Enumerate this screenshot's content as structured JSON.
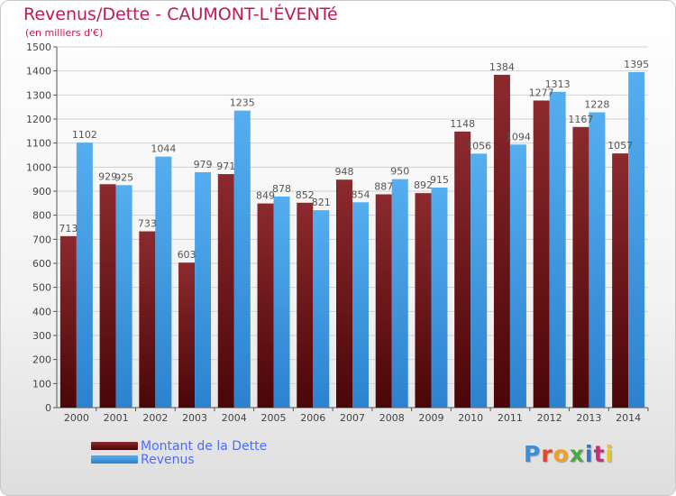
{
  "title": "Revenus/Dette - CAUMONT-L'ÉVENTé",
  "subtitle": "(en milliers d'€)",
  "logo": {
    "text": "Proxiti",
    "colors": [
      "#3b8fd8",
      "#e2462f",
      "#f0a21e",
      "#4aa844",
      "#2f76c9",
      "#c02f7d",
      "#e8c51a"
    ]
  },
  "colors": {
    "dette": "#7a1e22",
    "revenus": "#3f9be2"
  },
  "chart_data": {
    "type": "bar",
    "title": "Revenus/Dette - CAUMONT-L'ÉVENTé",
    "ylabel": "",
    "xlabel": "",
    "ylim": [
      0,
      1500
    ],
    "yticks": [
      0,
      100,
      200,
      300,
      400,
      500,
      600,
      700,
      800,
      900,
      1000,
      1100,
      1200,
      1300,
      1400,
      1500
    ],
    "grid": true,
    "categories": [
      "2000",
      "2001",
      "2002",
      "2003",
      "2004",
      "2005",
      "2006",
      "2007",
      "2008",
      "2009",
      "2010",
      "2011",
      "2012",
      "2013",
      "2014"
    ],
    "series": [
      {
        "name": "Montant de la Dette",
        "values": [
          713,
          929,
          733,
          603,
          971,
          849,
          852,
          948,
          887,
          892,
          1148,
          1384,
          1277,
          1167,
          1057
        ]
      },
      {
        "name": "Revenus",
        "values": [
          1102,
          925,
          1044,
          979,
          1235,
          878,
          821,
          854,
          950,
          915,
          1056,
          1094,
          1313,
          1228,
          1395
        ]
      }
    ],
    "data_labels": [
      [
        "713",
        "929",
        "733",
        "603",
        "971",
        "849",
        "852",
        "948",
        "887",
        "892",
        "1148",
        "1384",
        "1277",
        "1167",
        "1057"
      ],
      [
        "1102",
        "925",
        "1044",
        "979",
        "1235",
        "878",
        "821",
        "854",
        "950",
        "915",
        "1056",
        "1094",
        "1313",
        "1228",
        "1395"
      ]
    ]
  }
}
